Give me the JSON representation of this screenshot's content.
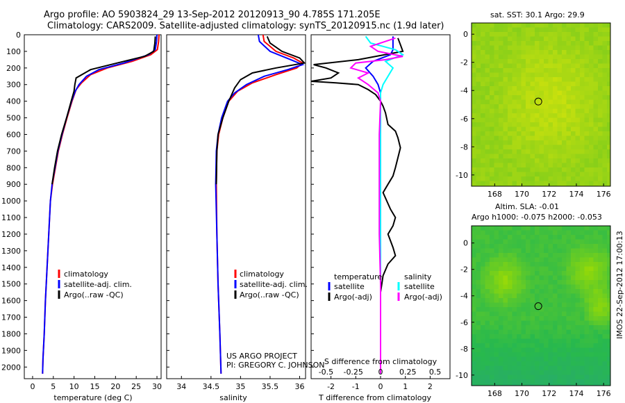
{
  "header": {
    "line1": "Argo profile: AO 5903824_29 13-Sep-2012 20120913_90 4.785S 171.205E",
    "line2": "Climatology: CARS2009. Satellite-adjusted climatology: synTS_20120915.nc (1.9d later)"
  },
  "project": {
    "line1": "US ARGO PROJECT",
    "line2": "PI: GREGORY C. JOHNSON"
  },
  "side_stamp": "IMOS 22-Sep-2012 17:00:13",
  "colors": {
    "climatology": "#ff0000",
    "satellite": "#0000ff",
    "argo": "#000000",
    "salinity_sat": "#00ffff",
    "salinity_argo": "#ff00ff"
  },
  "chart_data": [
    {
      "type": "line",
      "id": "temperature",
      "xlabel": "temperature (deg C)",
      "xlim": [
        -2,
        31
      ],
      "ylim": [
        2070,
        0
      ],
      "y_ticks": [
        0,
        100,
        200,
        300,
        400,
        500,
        600,
        700,
        800,
        900,
        1000,
        1100,
        1200,
        1300,
        1400,
        1500,
        1600,
        1700,
        1800,
        1900,
        2000
      ],
      "x_ticks": [
        0,
        5,
        10,
        15,
        20,
        25,
        30
      ],
      "legend": [
        "climatology",
        "satellite-adj. clim.",
        "Argo(..raw -QC)"
      ],
      "series": [
        {
          "name": "climatology",
          "color": "red",
          "points": [
            [
              30.5,
              0
            ],
            [
              30.4,
              40
            ],
            [
              30.1,
              90
            ],
            [
              28.5,
              120
            ],
            [
              24,
              160
            ],
            [
              18,
              200
            ],
            [
              14,
              240
            ],
            [
              11.8,
              290
            ],
            [
              10.5,
              330
            ],
            [
              9.5,
              400
            ],
            [
              8.3,
              500
            ],
            [
              7.2,
              600
            ],
            [
              6.2,
              700
            ],
            [
              5.5,
              800
            ],
            [
              4.8,
              900
            ],
            [
              4.3,
              1000
            ],
            [
              3.9,
              1200
            ],
            [
              3.5,
              1400
            ],
            [
              3.1,
              1600
            ],
            [
              2.8,
              1800
            ],
            [
              2.5,
              1950
            ],
            [
              2.4,
              2040
            ]
          ]
        },
        {
          "name": "satellite-adj. clim.",
          "color": "blue",
          "points": [
            [
              30.0,
              0
            ],
            [
              29.9,
              40
            ],
            [
              29.6,
              90
            ],
            [
              28.0,
              120
            ],
            [
              22,
              170
            ],
            [
              16,
              210
            ],
            [
              13,
              250
            ],
            [
              11.2,
              300
            ],
            [
              10.3,
              340
            ],
            [
              9.4,
              400
            ],
            [
              8.2,
              500
            ],
            [
              7.1,
              600
            ],
            [
              6.1,
              700
            ],
            [
              5.4,
              800
            ],
            [
              4.7,
              900
            ],
            [
              4.3,
              1000
            ],
            [
              3.9,
              1200
            ],
            [
              3.5,
              1400
            ],
            [
              3.1,
              1600
            ],
            [
              2.8,
              1800
            ],
            [
              2.5,
              1950
            ],
            [
              2.4,
              2040
            ]
          ]
        },
        {
          "name": "Argo(..raw -QC)",
          "color": "black",
          "points": [
            [
              29.6,
              10
            ],
            [
              29.5,
              50
            ],
            [
              29.2,
              100
            ],
            [
              27.0,
              130
            ],
            [
              22,
              160
            ],
            [
              14,
              210
            ],
            [
              10.5,
              260
            ],
            [
              10.2,
              300
            ],
            [
              10.0,
              340
            ],
            [
              9.3,
              400
            ],
            [
              8.2,
              500
            ],
            [
              7.0,
              600
            ],
            [
              6.0,
              700
            ],
            [
              5.3,
              800
            ],
            [
              4.7,
              900
            ]
          ]
        }
      ]
    },
    {
      "type": "line",
      "id": "salinity",
      "xlabel": "salinity",
      "xlim": [
        33.75,
        36.1
      ],
      "ylim": [
        2070,
        0
      ],
      "x_ticks": [
        34,
        34.5,
        35,
        35.5,
        36
      ],
      "legend": [
        "climatology",
        "satellite-adj. clim.",
        "Argo(..raw -QC)"
      ],
      "series": [
        {
          "name": "climatology",
          "color": "red",
          "points": [
            [
              35.38,
              0
            ],
            [
              35.4,
              40
            ],
            [
              35.6,
              100
            ],
            [
              35.9,
              140
            ],
            [
              36.05,
              170
            ],
            [
              35.95,
              200
            ],
            [
              35.6,
              240
            ],
            [
              35.2,
              290
            ],
            [
              34.95,
              340
            ],
            [
              34.8,
              400
            ],
            [
              34.7,
              500
            ],
            [
              34.63,
              600
            ],
            [
              34.6,
              700
            ],
            [
              34.59,
              900
            ],
            [
              34.6,
              1200
            ],
            [
              34.62,
              1500
            ],
            [
              34.65,
              1800
            ],
            [
              34.67,
              2040
            ]
          ]
        },
        {
          "name": "satellite-adj. clim.",
          "color": "blue",
          "points": [
            [
              35.3,
              0
            ],
            [
              35.32,
              40
            ],
            [
              35.5,
              100
            ],
            [
              35.85,
              150
            ],
            [
              36.05,
              180
            ],
            [
              35.8,
              210
            ],
            [
              35.4,
              250
            ],
            [
              35.1,
              300
            ],
            [
              34.9,
              350
            ],
            [
              34.78,
              400
            ],
            [
              34.68,
              500
            ],
            [
              34.62,
              600
            ],
            [
              34.59,
              700
            ],
            [
              34.58,
              900
            ],
            [
              34.6,
              1200
            ],
            [
              34.62,
              1500
            ],
            [
              34.65,
              1800
            ],
            [
              34.67,
              2040
            ]
          ]
        },
        {
          "name": "Argo(..raw -QC)",
          "color": "black",
          "points": [
            [
              35.45,
              10
            ],
            [
              35.5,
              50
            ],
            [
              35.7,
              100
            ],
            [
              36.0,
              140
            ],
            [
              36.08,
              170
            ],
            [
              35.6,
              200
            ],
            [
              35.2,
              230
            ],
            [
              35.0,
              270
            ],
            [
              34.9,
              320
            ],
            [
              34.8,
              400
            ],
            [
              34.7,
              500
            ],
            [
              34.62,
              600
            ],
            [
              34.6,
              700
            ],
            [
              34.59,
              900
            ]
          ]
        }
      ]
    },
    {
      "type": "line",
      "id": "difference",
      "xlabel_top": "S difference from climatology",
      "xlabel": "T difference from climatology",
      "xlim": [
        -2.8,
        2.8
      ],
      "ylim": [
        2070,
        0
      ],
      "x_ticks_T": [
        -2,
        -1,
        0,
        1,
        2
      ],
      "x_ticks_S": [
        -0.5,
        -0.25,
        0,
        0.25,
        0.5
      ],
      "legend_t": {
        "title": "temperature",
        "items": [
          "satellite",
          "Argo(-adj)"
        ]
      },
      "legend_s": {
        "title": "salinity",
        "items": [
          "satellite",
          "Argo(-adj)"
        ]
      },
      "series": [
        {
          "name": "T satellite",
          "color": "blue",
          "points": [
            [
              0.5,
              10
            ],
            [
              0.5,
              50
            ],
            [
              0.5,
              90
            ],
            [
              0.4,
              120
            ],
            [
              -0.3,
              160
            ],
            [
              -0.6,
              200
            ],
            [
              -0.3,
              250
            ],
            [
              -0.1,
              300
            ],
            [
              0,
              350
            ],
            [
              0,
              400
            ],
            [
              0,
              600
            ],
            [
              0,
              900
            ],
            [
              0,
              1200
            ],
            [
              0,
              1500
            ],
            [
              0,
              1800
            ],
            [
              0,
              2040
            ]
          ]
        },
        {
          "name": "T Argo(-adj)",
          "color": "black",
          "points": [
            [
              0.7,
              20
            ],
            [
              0.8,
              60
            ],
            [
              0.9,
              100
            ],
            [
              -0.9,
              150
            ],
            [
              -2.7,
              180
            ],
            [
              -2.2,
              200
            ],
            [
              -1.7,
              230
            ],
            [
              -2.0,
              260
            ],
            [
              -2.8,
              280
            ],
            [
              -1.8,
              290
            ],
            [
              -0.9,
              300
            ],
            [
              -0.5,
              330
            ],
            [
              -0.2,
              360
            ],
            [
              0,
              400
            ],
            [
              0.1,
              430
            ],
            [
              0.2,
              470
            ],
            [
              0.3,
              540
            ],
            [
              0.6,
              580
            ],
            [
              0.7,
              620
            ],
            [
              0.8,
              680
            ],
            [
              0.7,
              740
            ],
            [
              0.6,
              800
            ],
            [
              0.5,
              850
            ],
            [
              0.3,
              900
            ],
            [
              0.1,
              950
            ],
            [
              0.4,
              1050
            ],
            [
              0.6,
              1100
            ],
            [
              0.5,
              1150
            ],
            [
              0.3,
              1200
            ],
            [
              0.5,
              1280
            ],
            [
              0.6,
              1330
            ],
            [
              0.3,
              1380
            ],
            [
              0.1,
              1450
            ],
            [
              0,
              1550
            ],
            [
              0,
              1800
            ],
            [
              0,
              2040
            ]
          ]
        },
        {
          "name": "S satellite",
          "color": "cyan",
          "points": [
            [
              -0.6,
              10
            ],
            [
              -0.4,
              50
            ],
            [
              0.6,
              90
            ],
            [
              0.9,
              120
            ],
            [
              0.2,
              160
            ],
            [
              0.5,
              200
            ],
            [
              0.3,
              250
            ],
            [
              0.1,
              300
            ],
            [
              0,
              350
            ],
            [
              0,
              400
            ],
            [
              0,
              600
            ],
            [
              0,
              900
            ],
            [
              0,
              1200
            ],
            [
              0,
              1500
            ],
            [
              0,
              1800
            ],
            [
              0,
              2040
            ]
          ]
        },
        {
          "name": "S Argo(-adj)",
          "color": "magenta",
          "points": [
            [
              0.6,
              20
            ],
            [
              -0.4,
              70
            ],
            [
              -0.1,
              100
            ],
            [
              0.9,
              130
            ],
            [
              0.2,
              150
            ],
            [
              -1.0,
              170
            ],
            [
              -1.2,
              200
            ],
            [
              -0.5,
              230
            ],
            [
              -0.9,
              260
            ],
            [
              -0.5,
              300
            ],
            [
              -0.1,
              350
            ],
            [
              0,
              400
            ],
            [
              -0.05,
              600
            ],
            [
              -0.05,
              900
            ],
            [
              -0.05,
              1200
            ],
            [
              0,
              1500
            ],
            [
              0,
              1800
            ],
            [
              0,
              2040
            ]
          ]
        }
      ]
    },
    {
      "type": "heatmap",
      "id": "sst-map",
      "title": "sat. SST: 30.1  Argo: 29.9",
      "xlim": [
        166.3,
        176.5
      ],
      "ylim": [
        -10.8,
        0.8
      ],
      "x_ticks": [
        168,
        170,
        172,
        174,
        176
      ],
      "y_ticks": [
        0,
        -2,
        -4,
        -6,
        -8,
        -10
      ],
      "profile_location": [
        171.205,
        -4.785
      ]
    },
    {
      "type": "heatmap",
      "id": "sla-map",
      "title_line1": "Altim. SLA: -0.01",
      "title_line2": "Argo h1000: -0.075 h2000: -0.053",
      "xlim": [
        166.3,
        176.5
      ],
      "ylim": [
        -10.8,
        1.3
      ],
      "x_ticks": [
        168,
        170,
        172,
        174,
        176
      ],
      "y_ticks": [
        0,
        -2,
        -4,
        -6,
        -8,
        -10
      ],
      "profile_location": [
        171.205,
        -4.785
      ]
    }
  ]
}
